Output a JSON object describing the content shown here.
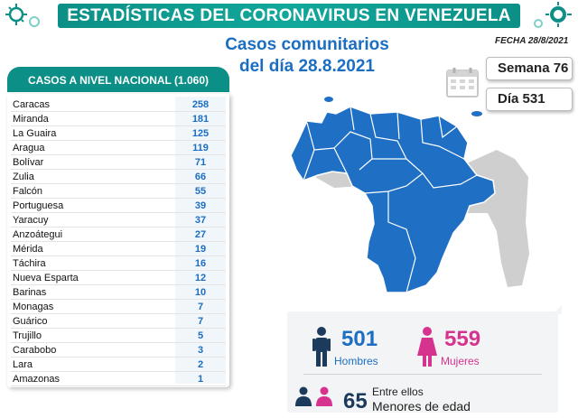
{
  "header": {
    "title": "ESTADÍSTICAS DEL CORONAVIRUS EN VENEZUELA",
    "subtitle_line1": "Casos comunitarios",
    "subtitle_line2": "del día 28.8.2021",
    "fecha": "FECHA 28/8/2021"
  },
  "counters": {
    "semana": "Semana 76",
    "dia": "Día 531"
  },
  "table": {
    "heading": "CASOS A NIVEL NACIONAL (1.060)",
    "rows": [
      {
        "name": "Caracas",
        "value": "258"
      },
      {
        "name": "Miranda",
        "value": "181"
      },
      {
        "name": "La Guaira",
        "value": "125"
      },
      {
        "name": "Aragua",
        "value": "119"
      },
      {
        "name": "Bolívar",
        "value": "71"
      },
      {
        "name": "Zulia",
        "value": "66"
      },
      {
        "name": "Falcón",
        "value": "55"
      },
      {
        "name": "Portuguesa",
        "value": "39"
      },
      {
        "name": "Yaracuy",
        "value": "37"
      },
      {
        "name": "Anzoátegui",
        "value": "27"
      },
      {
        "name": "Mérida",
        "value": "19"
      },
      {
        "name": "Táchira",
        "value": "16"
      },
      {
        "name": "Nueva Esparta",
        "value": "12"
      },
      {
        "name": "Barinas",
        "value": "10"
      },
      {
        "name": "Monagas",
        "value": "7"
      },
      {
        "name": "Guárico",
        "value": "7"
      },
      {
        "name": "Trujillo",
        "value": "5"
      },
      {
        "name": "Carabobo",
        "value": "3"
      },
      {
        "name": "Lara",
        "value": "2"
      },
      {
        "name": "Amazonas",
        "value": "1"
      }
    ]
  },
  "stats": {
    "men_count": "501",
    "men_label": "Hombres",
    "women_count": "559",
    "women_label": "Mujeres",
    "minors_prefix": "Entre ellos",
    "minors_count": "65",
    "minors_label": "Menores de edad"
  },
  "colors": {
    "brand_teal": "#0c8f86",
    "accent_blue": "#1b6ec2",
    "women_pink": "#d6338f",
    "map_blue": "#1f6fc5",
    "map_gray": "#c9c9c9"
  },
  "icons": [
    "virus-icon",
    "calendar-icon",
    "man-icon",
    "woman-icon",
    "family-icon"
  ]
}
